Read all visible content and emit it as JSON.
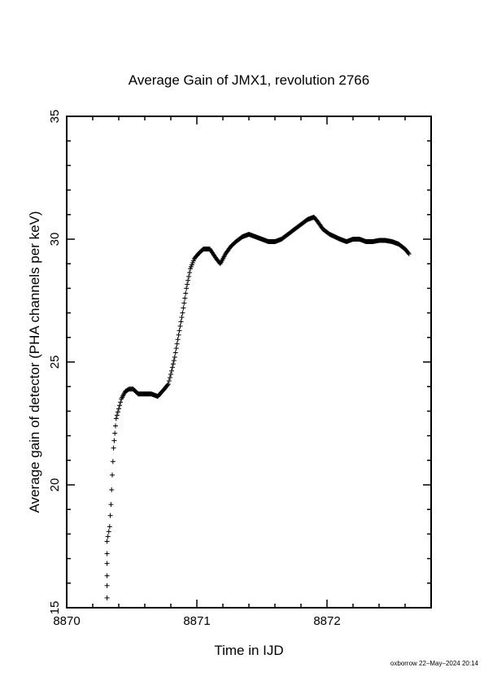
{
  "chart_data": {
    "type": "scatter",
    "title": "Average Gain of JMX1, revolution 2766",
    "xlabel": "Time in IJD",
    "ylabel": "Average gain of detector (PHA channels per keV)",
    "xlim": [
      8870,
      8872.8
    ],
    "ylim": [
      15,
      35
    ],
    "xticks": [
      8870,
      8871,
      8872
    ],
    "yticks": [
      15,
      20,
      25,
      30,
      35
    ],
    "marker": "plus",
    "grid": false,
    "series": [
      {
        "name": "",
        "color": "#000000",
        "x": [
          8870.31,
          8870.31,
          8870.31,
          8870.31,
          8870.31,
          8870.31,
          8870.33,
          8870.34,
          8870.35,
          8870.36,
          8870.37,
          8870.38,
          8870.4,
          8870.42,
          8870.45,
          8870.48,
          8870.51,
          8870.55,
          8870.6,
          8870.65,
          8870.7,
          8870.75,
          8870.78,
          8870.8,
          8870.83,
          8870.86,
          8870.89,
          8870.92,
          8870.95,
          8870.98,
          8871.01,
          8871.05,
          8871.1,
          8871.15,
          8871.18,
          8871.22,
          8871.26,
          8871.3,
          8871.35,
          8871.4,
          8871.45,
          8871.5,
          8871.55,
          8871.6,
          8871.65,
          8871.7,
          8871.75,
          8871.8,
          8871.85,
          8871.9,
          8871.93,
          8871.97,
          8872.02,
          8872.06,
          8872.1,
          8872.15,
          8872.2,
          8872.25,
          8872.3,
          8872.35,
          8872.4,
          8872.45,
          8872.5,
          8872.55,
          8872.6,
          8872.63
        ],
        "y": [
          15.4,
          15.9,
          16.3,
          16.8,
          17.2,
          17.7,
          18.3,
          19.2,
          20.4,
          21.5,
          22.1,
          22.7,
          23.1,
          23.5,
          23.8,
          23.9,
          23.9,
          23.7,
          23.7,
          23.7,
          23.6,
          23.9,
          24.1,
          24.5,
          25.2,
          26.1,
          27.0,
          28.0,
          28.8,
          29.2,
          29.4,
          29.6,
          29.6,
          29.2,
          29.0,
          29.4,
          29.7,
          29.9,
          30.1,
          30.2,
          30.1,
          30.0,
          29.9,
          29.9,
          30.0,
          30.2,
          30.4,
          30.6,
          30.8,
          30.9,
          30.7,
          30.4,
          30.2,
          30.1,
          30.0,
          29.9,
          30.0,
          30.0,
          29.9,
          29.9,
          29.95,
          29.95,
          29.9,
          29.8,
          29.6,
          29.4
        ]
      }
    ]
  },
  "footer": "oxborrow 22–May–2024 20:14"
}
